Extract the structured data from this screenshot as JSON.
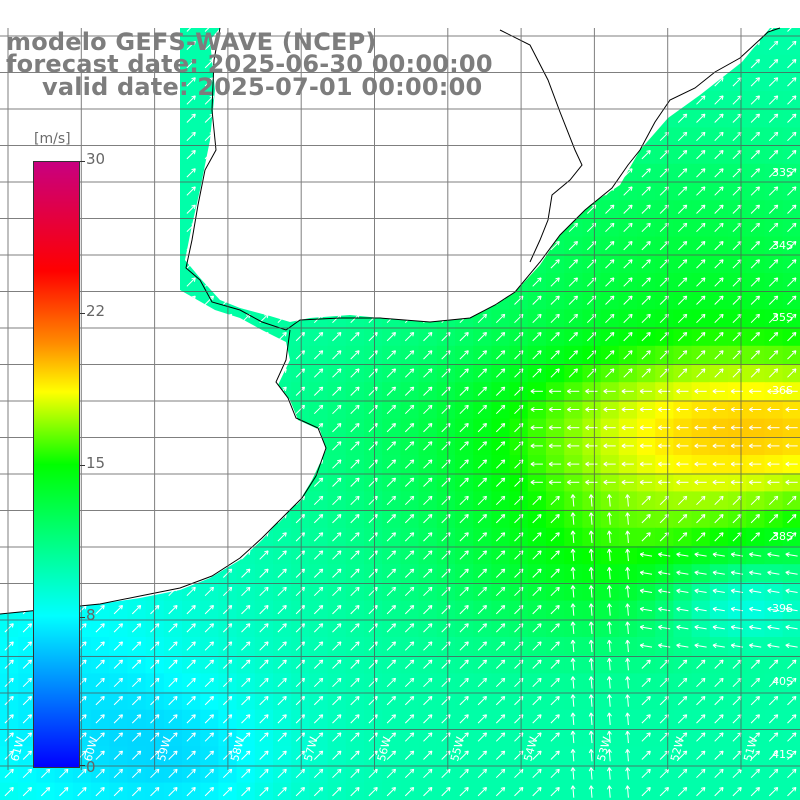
{
  "title": {
    "line1": "modelo GEFS-WAVE (NCEP)",
    "line2": "forecast date: 2025-06-30 00:00:00",
    "line3": "valid date: 2025-07-01 00:00:00"
  },
  "colorbar": {
    "unit": "[m/s]",
    "ticks": [
      "30",
      "22",
      "15",
      "8",
      "0"
    ],
    "tick_values": [
      30,
      22,
      15,
      8,
      0
    ],
    "range": [
      0,
      30
    ],
    "colors": [
      "#0000ff",
      "#00ffff",
      "#00ff00",
      "#ffff00",
      "#ff8c00",
      "#ff0000",
      "#c80080"
    ]
  },
  "grid": {
    "lat_labels": [
      "33S",
      "34S",
      "35S",
      "36S",
      "38S",
      "39S",
      "40S",
      "41S"
    ],
    "lon_labels": [
      "61W",
      "60W",
      "59W",
      "58W",
      "57W",
      "56W",
      "55W",
      "54W",
      "53W",
      "52W",
      "51W"
    ]
  },
  "colors": {
    "land": "#ffffff",
    "gridline": "#555555",
    "coast": "#000000",
    "arrow": "#ffffff",
    "title": "#7d7d7d"
  }
}
